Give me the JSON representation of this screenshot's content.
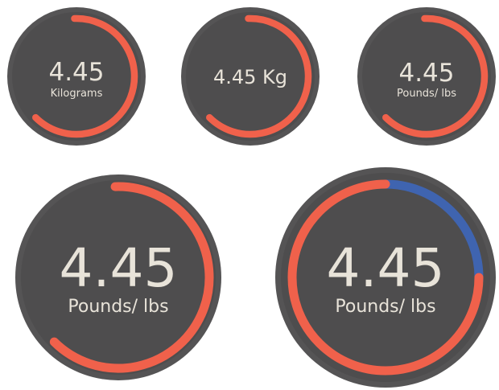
{
  "colors": {
    "background": "#ffffff",
    "ring": "#555455",
    "face": "#4e4d4e",
    "arc_primary": "#f0614b",
    "arc_secondary": "#3f64b0",
    "text": "#e8e3d9"
  },
  "gauges": [
    {
      "value": "4.45",
      "unit": "Kilograms",
      "fill_fraction": 0.63,
      "arc_color": "primary"
    },
    {
      "value": "4.45 Kg",
      "unit": "",
      "fill_fraction": 0.63,
      "arc_color": "primary"
    },
    {
      "value": "4.45",
      "unit": "Pounds/ lbs",
      "fill_fraction": 0.63,
      "arc_color": "primary"
    },
    {
      "value": "4.45",
      "unit": "Pounds/ lbs",
      "fill_fraction": 0.63,
      "arc_color": "primary"
    },
    {
      "value": "4.45",
      "unit": "Pounds/ lbs",
      "fill_fraction": 0.75,
      "arc_color": "primary",
      "remainder_color": "secondary"
    }
  ]
}
